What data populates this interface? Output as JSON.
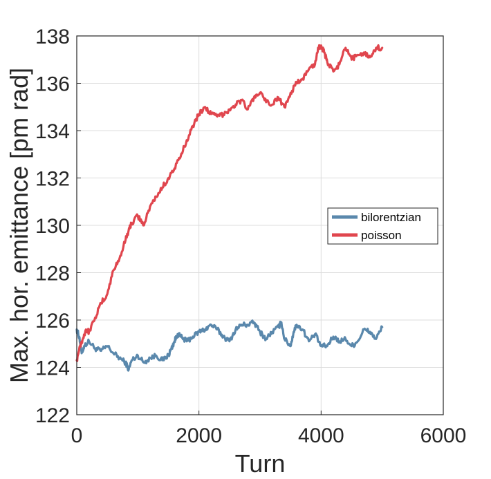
{
  "chart_data": {
    "type": "line",
    "xlabel": "Turn",
    "ylabel": "Max. hor. emittance [pm rad]",
    "xlim": [
      0,
      6000
    ],
    "ylim": [
      122,
      138
    ],
    "xticks": [
      0,
      2000,
      4000,
      6000
    ],
    "yticks": [
      122,
      124,
      126,
      128,
      130,
      132,
      134,
      136,
      138
    ],
    "grid": true,
    "legend_position": "right",
    "series": [
      {
        "name": "bilorentzian",
        "color": "#5a88ac",
        "x": [
          0,
          40,
          80,
          120,
          200,
          300,
          400,
          500,
          600,
          700,
          800,
          850,
          900,
          1000,
          1100,
          1200,
          1300,
          1400,
          1500,
          1550,
          1600,
          1650,
          1700,
          1800,
          1900,
          2000,
          2100,
          2200,
          2300,
          2400,
          2500,
          2600,
          2700,
          2800,
          2900,
          3000,
          3100,
          3200,
          3300,
          3350,
          3400,
          3500,
          3550,
          3600,
          3700,
          3800,
          3900,
          4000,
          4100,
          4200,
          4300,
          4400,
          4500,
          4600,
          4700,
          4800,
          4900,
          5000
        ],
        "y": [
          125.6,
          125.3,
          124.6,
          124.9,
          125.1,
          124.8,
          124.7,
          124.9,
          124.6,
          124.4,
          124.2,
          123.9,
          124.3,
          124.5,
          124.2,
          124.4,
          124.5,
          124.3,
          124.5,
          124.8,
          125.1,
          125.4,
          125.3,
          125.1,
          125.3,
          125.5,
          125.6,
          125.8,
          125.6,
          125.3,
          125.1,
          125.6,
          125.8,
          125.8,
          125.9,
          125.5,
          125.2,
          125.5,
          125.7,
          125.9,
          125.2,
          124.9,
          125.5,
          125.8,
          125.6,
          125.1,
          125.4,
          124.9,
          124.9,
          125.3,
          125.1,
          125.2,
          124.9,
          125.1,
          125.6,
          125.5,
          125.2,
          125.7
        ]
      },
      {
        "name": "poisson",
        "color": "#e0464e",
        "x": [
          0,
          50,
          100,
          150,
          200,
          300,
          400,
          500,
          600,
          700,
          800,
          850,
          900,
          1000,
          1100,
          1200,
          1300,
          1400,
          1500,
          1600,
          1700,
          1800,
          1900,
          2000,
          2100,
          2200,
          2300,
          2400,
          2500,
          2600,
          2700,
          2800,
          2900,
          3000,
          3100,
          3200,
          3300,
          3400,
          3500,
          3600,
          3700,
          3800,
          3900,
          3950,
          4000,
          4050,
          4100,
          4200,
          4300,
          4400,
          4500,
          4600,
          4700,
          4800,
          4900,
          5000
        ],
        "y": [
          124.3,
          124.9,
          125.2,
          125.6,
          125.5,
          126.1,
          126.7,
          127.1,
          128.1,
          128.6,
          129.4,
          129.8,
          130.1,
          130.4,
          130.0,
          130.8,
          131.2,
          131.6,
          132.0,
          132.4,
          132.9,
          133.6,
          134.2,
          134.7,
          135.0,
          134.7,
          134.6,
          134.7,
          134.9,
          135.1,
          135.3,
          134.9,
          135.4,
          135.6,
          135.2,
          135.1,
          135.4,
          135.0,
          135.6,
          136.0,
          136.2,
          136.6,
          136.8,
          137.5,
          137.6,
          137.3,
          136.9,
          136.5,
          136.8,
          137.5,
          137.0,
          137.2,
          137.3,
          137.1,
          137.5,
          137.5
        ]
      }
    ]
  }
}
